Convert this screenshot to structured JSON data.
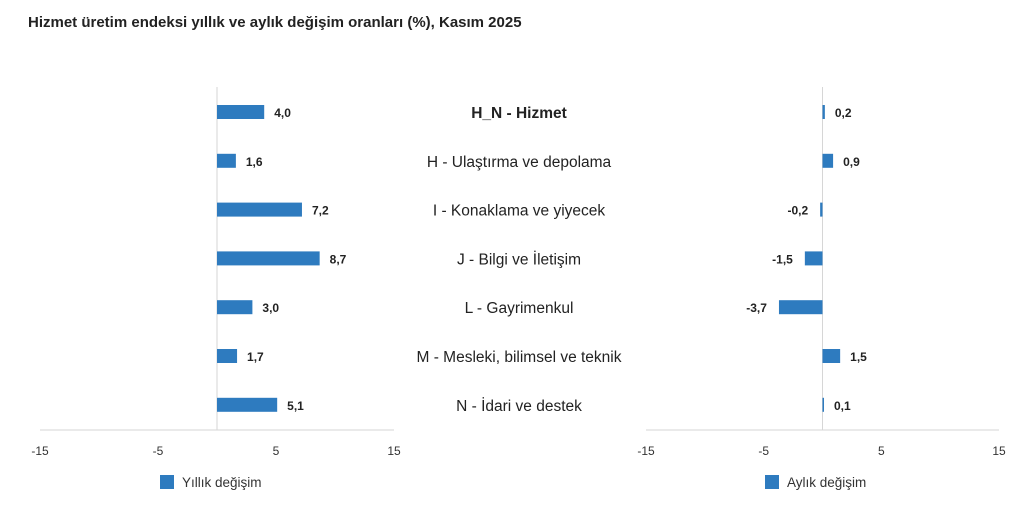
{
  "title": "Hizmet üretim endeksi yıllık ve aylık değişim oranları (%), Kasım 2025",
  "colors": {
    "bar": "#2e7bbf",
    "axis": "#d6d6d6"
  },
  "chart_data": {
    "type": "bar",
    "orientation": "horizontal",
    "categories": [
      "H_N - Hizmet",
      "H - Ulaştırma ve depolama",
      "I - Konaklama ve yiyecek",
      "J - Bilgi ve İletişim",
      "L - Gayrimenkul",
      "M - Mesleki, bilimsel ve teknik",
      "N - İdari ve destek"
    ],
    "bold_category_index": 0,
    "panels": [
      {
        "series_name": "Yıllık değişim",
        "values": [
          4.0,
          1.6,
          7.2,
          8.7,
          3.0,
          1.7,
          5.1
        ],
        "value_labels": [
          "4,0",
          "1,6",
          "7,2",
          "8,7",
          "3,0",
          "1,7",
          "5,1"
        ],
        "xlim": [
          -15,
          15
        ],
        "ticks": [
          -15,
          -5,
          5,
          15
        ],
        "tick_labels": [
          "-15",
          "-5",
          "5",
          "15"
        ]
      },
      {
        "series_name": "Aylık değişim",
        "values": [
          0.2,
          0.9,
          -0.2,
          -1.5,
          -3.7,
          1.5,
          0.1
        ],
        "value_labels": [
          "0,2",
          "0,9",
          "-0,2",
          "-1,5",
          "-3,7",
          "1,5",
          "0,1"
        ],
        "xlim": [
          -15,
          15
        ],
        "ticks": [
          -15,
          -5,
          5,
          15
        ],
        "tick_labels": [
          "-15",
          "-5",
          "5",
          "15"
        ]
      }
    ],
    "legend_position": "bottom"
  }
}
